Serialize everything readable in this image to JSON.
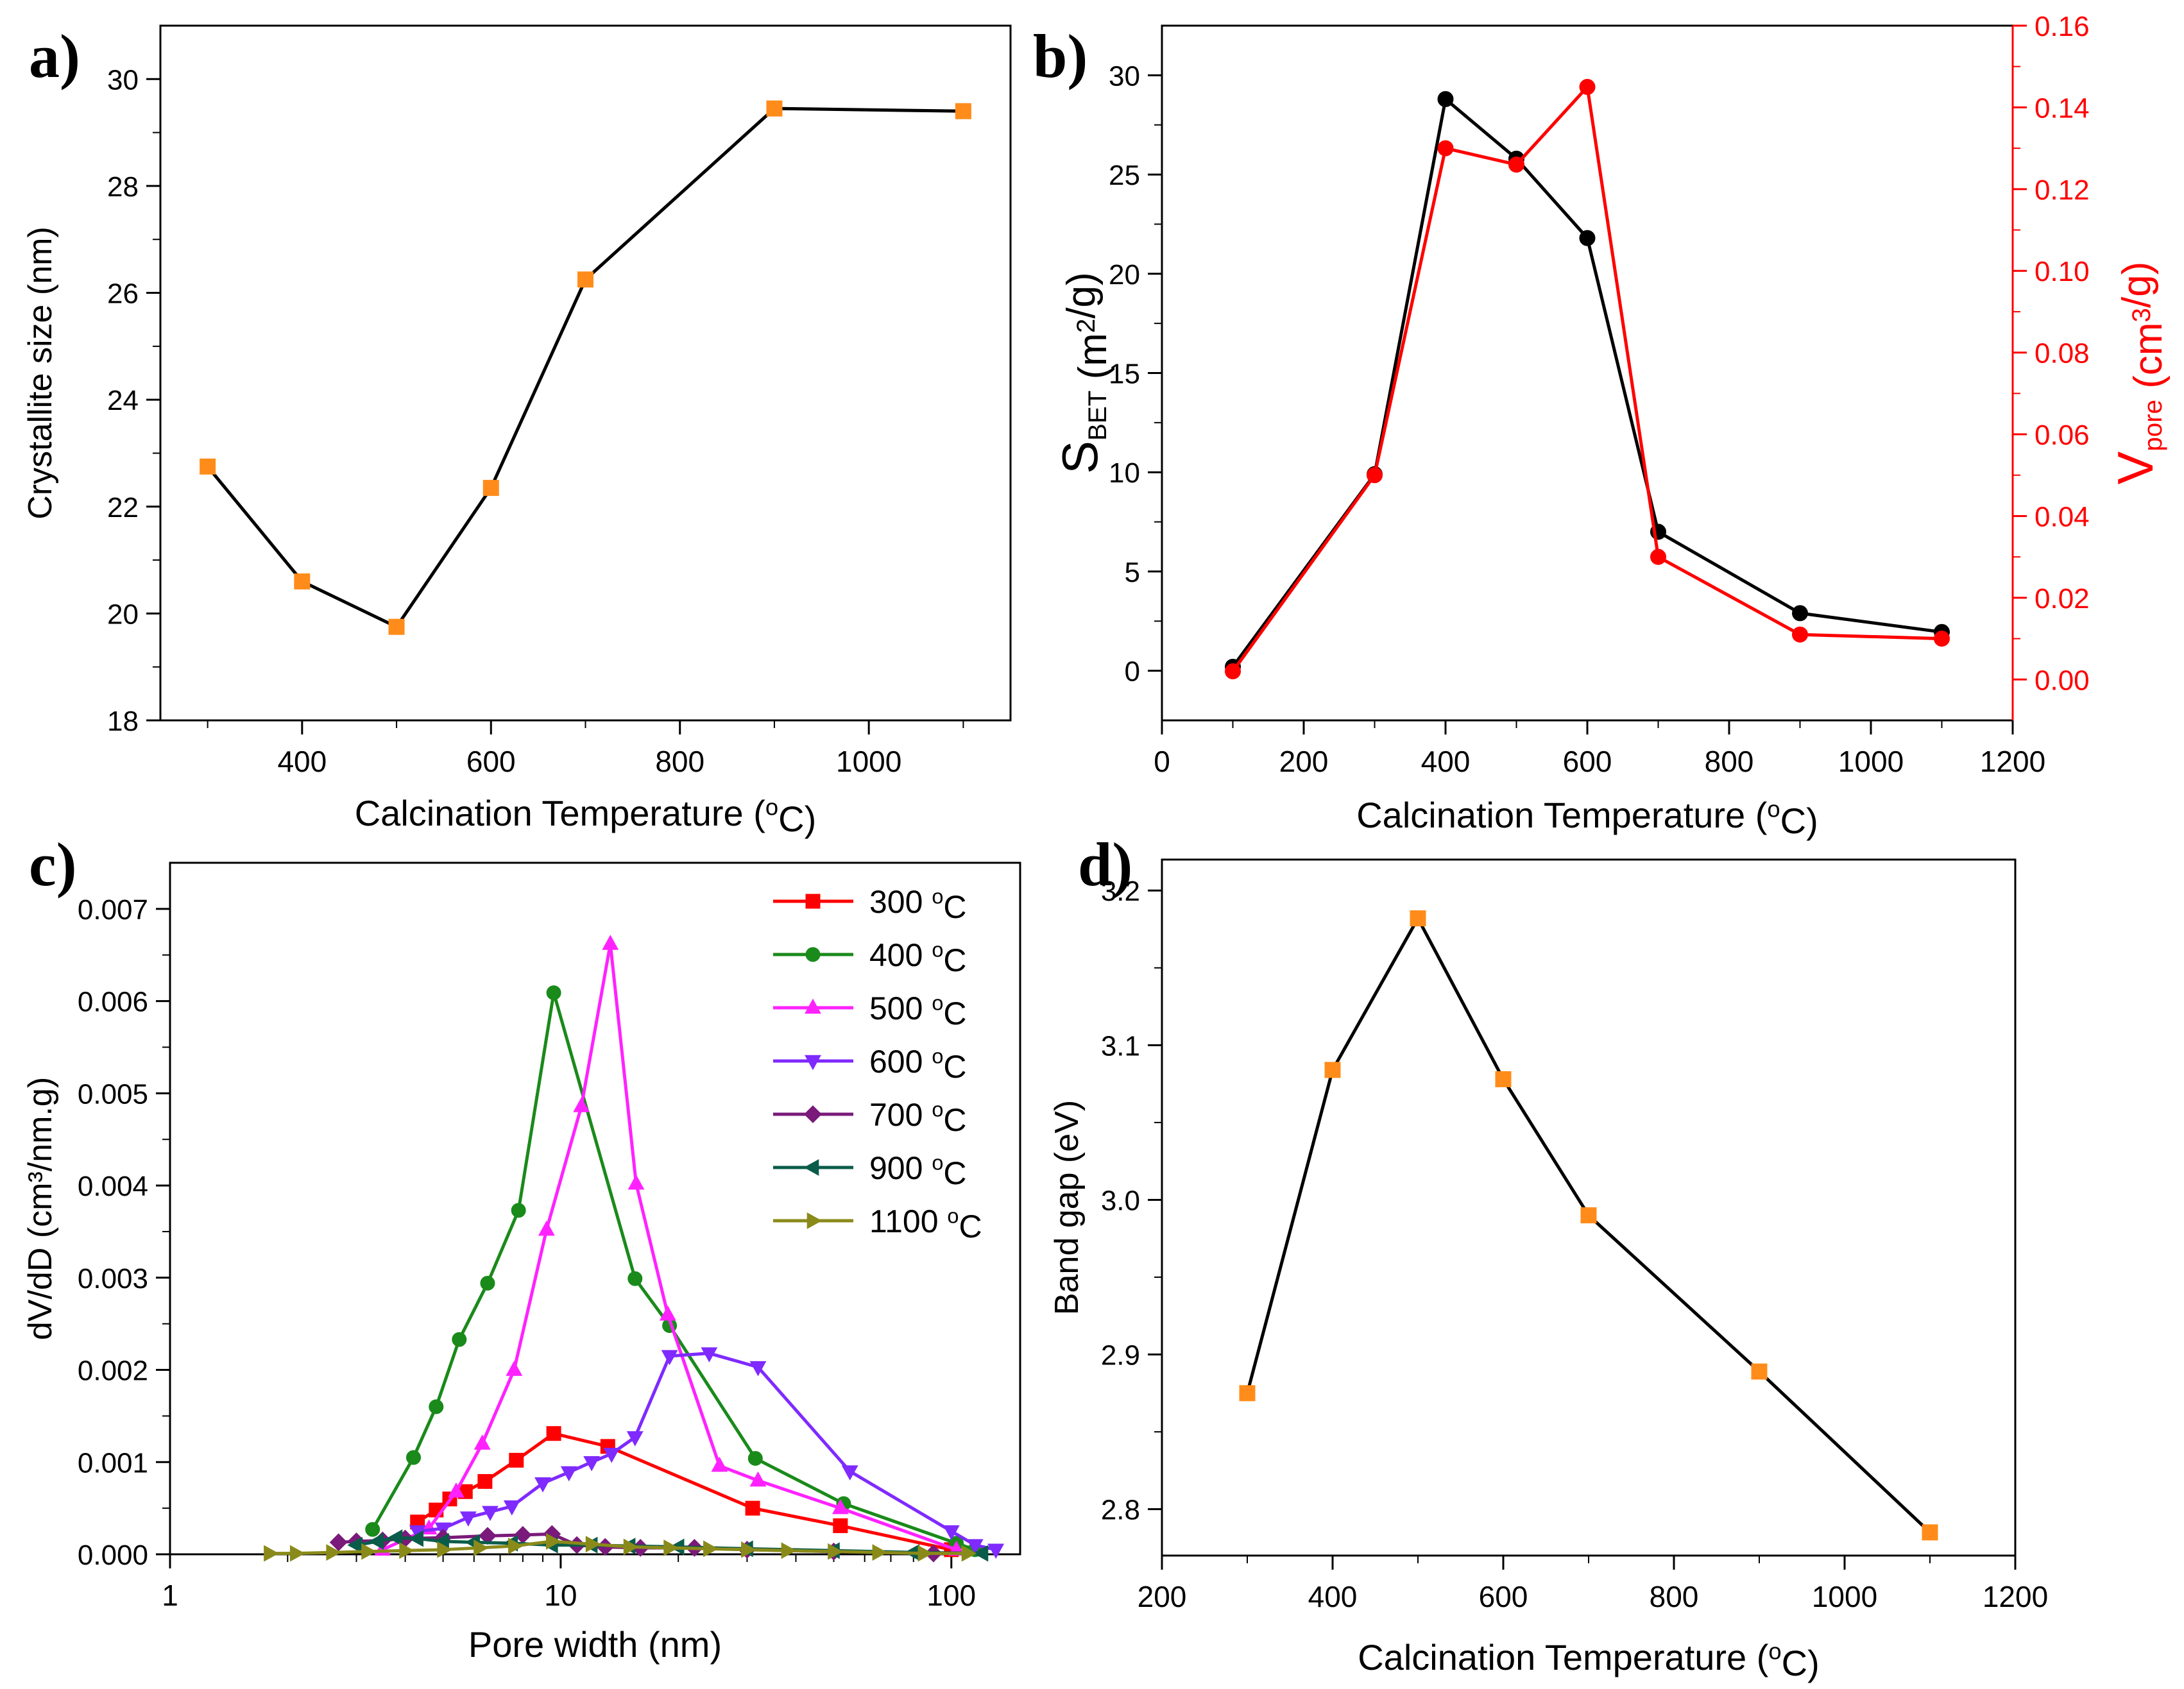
{
  "chart_data": [
    {
      "panel": "a)",
      "type": "line",
      "xlabel": "Calcination Temperature (oC)",
      "ylabel": "Crystallite size (nm)",
      "xlim": [
        250,
        1150
      ],
      "ylim": [
        18,
        31
      ],
      "xticks": [
        400,
        600,
        800,
        1000
      ],
      "yticks": [
        18,
        20,
        22,
        24,
        26,
        28,
        30
      ],
      "series": [
        {
          "name": "Crystallite size",
          "color": "#000000",
          "marker": "square",
          "marker_color": "#ff8c1a",
          "x": [
            300,
            400,
            500,
            600,
            700,
            900,
            1100
          ],
          "y": [
            22.75,
            20.6,
            19.75,
            22.35,
            26.25,
            29.45,
            29.4
          ]
        }
      ]
    },
    {
      "panel": "b)",
      "type": "line",
      "xlabel": "Calcination Temperature (oC)",
      "ylabel": "SBET (m2/g)",
      "y2label": "Vpore (cm3/g)",
      "xlim": [
        0,
        1200
      ],
      "ylim": [
        -2.5,
        32.5
      ],
      "y2lim": [
        -0.01,
        0.16
      ],
      "xticks": [
        0,
        200,
        400,
        600,
        800,
        1000,
        1200
      ],
      "yticks": [
        0,
        5,
        10,
        15,
        20,
        25,
        30
      ],
      "y2ticks": [
        "0.00",
        "0.02",
        "0.04",
        "0.06",
        "0.08",
        "0.10",
        "0.12",
        "0.14",
        "0.16"
      ],
      "series": [
        {
          "name": "SBET",
          "axis": "left",
          "color": "#000000",
          "marker": "circle",
          "x": [
            100,
            300,
            400,
            500,
            600,
            700,
            900,
            1100
          ],
          "y": [
            0.2,
            9.9,
            28.8,
            25.8,
            21.8,
            7.0,
            2.9,
            1.95
          ]
        },
        {
          "name": "Vpore",
          "axis": "right",
          "color": "#ff0000",
          "marker": "circle",
          "x": [
            100,
            300,
            400,
            500,
            600,
            700,
            900,
            1100
          ],
          "y": [
            0.002,
            0.05,
            0.13,
            0.126,
            0.145,
            0.03,
            0.011,
            0.01
          ]
        }
      ]
    },
    {
      "panel": "c)",
      "type": "line",
      "xscale": "log",
      "xlabel": "Pore width (nm)",
      "ylabel": "dV/dD (cm³/nm.g)",
      "xlim": [
        1,
        150
      ],
      "ylim": [
        0,
        0.0075
      ],
      "xticks": [
        1,
        10,
        100
      ],
      "yticks": [
        "0.000",
        "0.001",
        "0.002",
        "0.003",
        "0.004",
        "0.005",
        "0.006",
        "0.007"
      ],
      "legend_position": "top-right",
      "series": [
        {
          "name": "300 oC",
          "color": "#ff0000",
          "marker": "square",
          "x": [
            4.3,
            4.8,
            5.2,
            5.7,
            6.4,
            7.7,
            9.6,
            13.2,
            31.0,
            52.0,
            100.0
          ],
          "y": [
            0.00035,
            0.00048,
            0.0006,
            0.00068,
            0.00079,
            0.00102,
            0.00131,
            0.00117,
            0.0005,
            0.00031,
            5e-05
          ]
        },
        {
          "name": "400 oC",
          "color": "#1a8a1a",
          "marker": "circle",
          "x": [
            3.3,
            4.2,
            4.8,
            5.5,
            6.5,
            7.8,
            9.6,
            15.5,
            19.0,
            31.5,
            53.0,
            103.0,
            115.0
          ],
          "y": [
            0.00027,
            0.00105,
            0.0016,
            0.00233,
            0.00294,
            0.00373,
            0.00609,
            0.00299,
            0.00248,
            0.00104,
            0.00055,
            0.00012,
            5e-05
          ]
        },
        {
          "name": "500 oC",
          "color": "#ff22ff",
          "marker": "triangle-up",
          "x": [
            3.5,
            4.6,
            5.4,
            6.3,
            7.6,
            9.2,
            11.3,
            13.4,
            15.6,
            18.8,
            25.5,
            32.0,
            52.0,
            103.0
          ],
          "y": [
            5e-05,
            0.00028,
            0.00068,
            0.0012,
            0.002,
            0.00352,
            0.00486,
            0.00662,
            0.00402,
            0.0026,
            0.00096,
            0.0008,
            0.0005,
            5e-05
          ]
        },
        {
          "name": "600 oC",
          "color": "#7f2aff",
          "marker": "triangle-down",
          "x": [
            4.3,
            5.0,
            5.8,
            6.6,
            7.5,
            9.0,
            10.5,
            12.0,
            13.5,
            15.5,
            19.0,
            24.0,
            32.0,
            55.0,
            100.0,
            115.0,
            130.0
          ],
          "y": [
            0.00025,
            0.00028,
            0.0004,
            0.00046,
            0.00052,
            0.00077,
            0.00089,
            0.001,
            0.00109,
            0.00127,
            0.00215,
            0.00218,
            0.00203,
            0.0009,
            0.00025,
            0.0001,
            5e-05
          ]
        },
        {
          "name": "700 oC",
          "color": "#7a1a7a",
          "marker": "diamond",
          "x": [
            2.7,
            3.0,
            3.5,
            4.0,
            5.0,
            6.5,
            8.0,
            9.5,
            11.0,
            13.0,
            16.0,
            22.0,
            30.0,
            50.0,
            90.0
          ],
          "y": [
            0.00013,
            0.00014,
            0.00015,
            0.00017,
            0.00018,
            0.0002,
            0.00021,
            0.00022,
            0.0001,
            8e-05,
            7e-05,
            7e-05,
            5e-05,
            3e-05,
            1e-05
          ]
        },
        {
          "name": "900 oC",
          "color": "#0a5c4a",
          "marker": "triangle-left",
          "x": [
            3.0,
            3.4,
            3.8,
            4.3,
            5.0,
            6.0,
            7.5,
            9.5,
            12.0,
            15.0,
            20.0,
            30.0,
            50.0,
            80.0,
            120.0
          ],
          "y": [
            0.0001,
            0.00014,
            0.00018,
            0.00017,
            0.00014,
            0.00013,
            0.00012,
            0.0001,
            0.0001,
            9e-05,
            8e-05,
            6e-05,
            4e-05,
            2e-05,
            1e-05
          ]
        },
        {
          "name": "1100 oC",
          "color": "#8a8a1a",
          "marker": "triangle-right",
          "x": [
            1.8,
            2.1,
            2.6,
            3.2,
            4.0,
            5.0,
            6.2,
            7.6,
            9.5,
            12.0,
            15.0,
            19.0,
            24.0,
            30.0,
            38.0,
            50.0,
            65.0,
            85.0,
            110.0
          ],
          "y": [
            1e-05,
            1e-05,
            2e-05,
            3e-05,
            4e-05,
            5e-05,
            7e-05,
            9e-05,
            0.00014,
            0.00011,
            8e-05,
            7e-05,
            6e-05,
            5e-05,
            4e-05,
            3e-05,
            2e-05,
            1e-05,
            1e-05
          ]
        }
      ]
    },
    {
      "panel": "d)",
      "type": "line",
      "xlabel": "Calcination Temperature (oC)",
      "ylabel": "Band gap (eV)",
      "xlim": [
        200,
        1200
      ],
      "ylim": [
        2.77,
        3.22
      ],
      "xticks": [
        200,
        400,
        600,
        800,
        1000,
        1200
      ],
      "yticks": [
        "2.8",
        "2.9",
        "3.0",
        "3.1",
        "3.2"
      ],
      "series": [
        {
          "name": "Band gap",
          "color": "#000000",
          "marker": "square",
          "marker_color": "#ff8c1a",
          "x": [
            300,
            400,
            500,
            600,
            700,
            900,
            1100
          ],
          "y": [
            2.875,
            3.084,
            3.182,
            3.078,
            2.99,
            2.889,
            2.785
          ]
        }
      ]
    }
  ]
}
